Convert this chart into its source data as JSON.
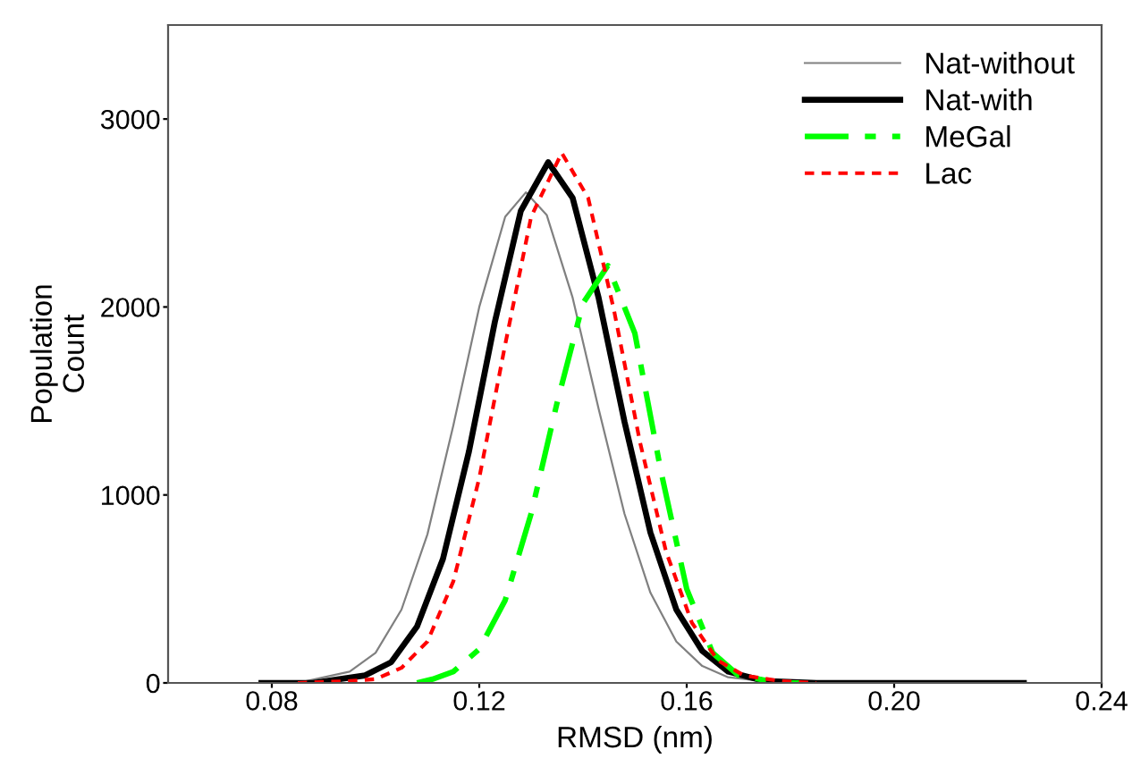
{
  "chart_data": {
    "type": "line",
    "xlabel": "RMSD (nm)",
    "ylabel": "Population\nCount",
    "xlim": [
      0.06,
      0.24
    ],
    "xticks": [
      {
        "value": 0.08,
        "label": "0.08"
      },
      {
        "value": 0.12,
        "label": "0.12"
      },
      {
        "value": 0.16,
        "label": "0.16"
      },
      {
        "value": 0.2,
        "label": "0.20"
      },
      {
        "value": 0.24,
        "label": "0.24"
      }
    ],
    "ylim": [
      0,
      3500
    ],
    "yticks": [
      0,
      1000,
      2000,
      3000
    ],
    "grid": false,
    "legend": "top right",
    "marker": "none",
    "series": [
      {
        "name": "Nat-without",
        "color": "#808080",
        "line_style": "solid",
        "x": [
          0.075,
          0.085,
          0.095,
          0.1,
          0.105,
          0.11,
          0.115,
          0.12,
          0.125,
          0.129,
          0.133,
          0.138,
          0.143,
          0.148,
          0.153,
          0.158,
          0.163,
          0.168,
          0.178,
          0.225
        ],
        "values": [
          0,
          0,
          60,
          160,
          390,
          790,
          1370,
          2000,
          2480,
          2610,
          2490,
          2050,
          1460,
          900,
          480,
          220,
          90,
          30,
          0,
          0
        ]
      },
      {
        "name": "Nat-with",
        "color": "#000000",
        "line_style": "solid",
        "x": [
          0.078,
          0.088,
          0.098,
          0.103,
          0.108,
          0.113,
          0.118,
          0.123,
          0.128,
          0.1333,
          0.138,
          0.143,
          0.148,
          0.153,
          0.158,
          0.163,
          0.168,
          0.175,
          0.185,
          0.225
        ],
        "values": [
          0,
          0,
          40,
          110,
          300,
          660,
          1230,
          1920,
          2510,
          2770,
          2580,
          2050,
          1390,
          800,
          390,
          170,
          60,
          10,
          0,
          0
        ]
      },
      {
        "name": "MeGal",
        "color": "#00ff00",
        "line_style": "dashdot",
        "x": [
          0.108,
          0.111,
          0.115,
          0.12,
          0.125,
          0.13,
          0.135,
          0.14,
          0.1448,
          0.15,
          0.155,
          0.16,
          0.165,
          0.17,
          0.178,
          0.182
        ],
        "values": [
          0,
          20,
          60,
          180,
          440,
          900,
          1490,
          2020,
          2220,
          1860,
          1130,
          500,
          160,
          40,
          0,
          0
        ]
      },
      {
        "name": "Lac",
        "color": "#ff0000",
        "line_style": "dotted",
        "x": [
          0.085,
          0.095,
          0.1,
          0.105,
          0.11,
          0.115,
          0.12,
          0.125,
          0.13,
          0.1359,
          0.141,
          0.146,
          0.151,
          0.156,
          0.161,
          0.166,
          0.171,
          0.178,
          0.185
        ],
        "values": [
          0,
          10,
          20,
          80,
          220,
          540,
          1090,
          1800,
          2480,
          2820,
          2580,
          1980,
          1280,
          700,
          320,
          120,
          40,
          10,
          0
        ]
      }
    ]
  }
}
